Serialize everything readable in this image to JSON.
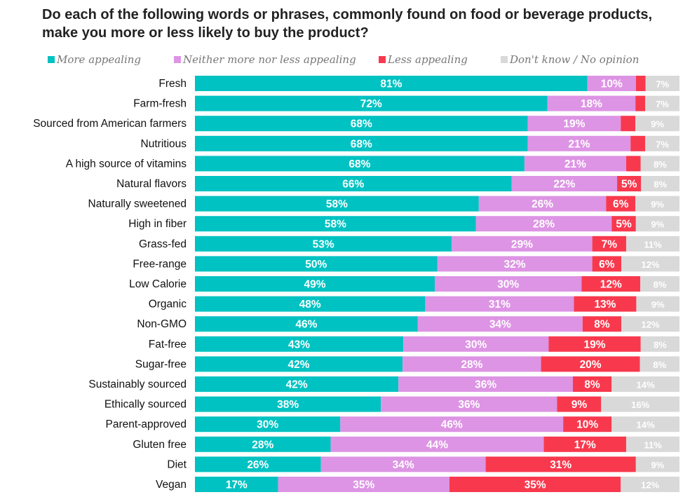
{
  "chart_data": {
    "type": "bar",
    "orientation": "horizontal",
    "stacked": true,
    "title": "Do each of the following words or phrases, commonly found on food or beverage products, make you more or less likely to buy the product?",
    "legend_position": "top",
    "categories": [
      "Fresh",
      "Farm-fresh",
      "Sourced from American farmers",
      "Nutritious",
      "A high source of vitamins",
      "Natural flavors",
      "Naturally sweetened",
      "High in fiber",
      "Grass-fed",
      "Free-range",
      "Low Calorie",
      "Organic",
      "Non-GMO",
      "Fat-free",
      "Sugar-free",
      "Sustainably sourced",
      "Ethically sourced",
      "Parent-approved",
      "Gluten free",
      "Diet",
      "Vegan"
    ],
    "series": [
      {
        "name": "More appealing",
        "color": "#00c2c2",
        "values": [
          81,
          72,
          68,
          68,
          68,
          66,
          58,
          58,
          53,
          50,
          49,
          48,
          46,
          43,
          42,
          42,
          38,
          30,
          28,
          26,
          17
        ],
        "labels": [
          "81%",
          "72%",
          "68%",
          "68%",
          "68%",
          "66%",
          "58%",
          "58%",
          "53%",
          "50%",
          "49%",
          "48%",
          "46%",
          "43%",
          "42%",
          "42%",
          "38%",
          "30%",
          "28%",
          "26%",
          "17%"
        ]
      },
      {
        "name": "Neither more nor less appealing",
        "color": "#dd94e4",
        "values": [
          10,
          18,
          19,
          21,
          21,
          22,
          26,
          28,
          29,
          32,
          30,
          31,
          34,
          30,
          28,
          36,
          36,
          46,
          44,
          34,
          35
        ],
        "labels": [
          "10%",
          "18%",
          "19%",
          "21%",
          "21%",
          "22%",
          "26%",
          "28%",
          "29%",
          "32%",
          "30%",
          "31%",
          "34%",
          "30%",
          "28%",
          "36%",
          "36%",
          "46%",
          "44%",
          "34%",
          "35%"
        ]
      },
      {
        "name": "Less appealing",
        "color": "#f8394d",
        "values": [
          2,
          2,
          3,
          3,
          3,
          5,
          6,
          5,
          7,
          6,
          12,
          13,
          8,
          19,
          20,
          8,
          9,
          10,
          17,
          31,
          35
        ],
        "labels": [
          "",
          "",
          "",
          "",
          "",
          "5%",
          "6%",
          "5%",
          "7%",
          "6%",
          "12%",
          "13%",
          "8%",
          "19%",
          "20%",
          "8%",
          "9%",
          "10%",
          "17%",
          "31%",
          "35%"
        ]
      },
      {
        "name": "Don't know / No opinion",
        "color": "#d9d9d9",
        "values": [
          7,
          7,
          9,
          7,
          8,
          8,
          9,
          9,
          11,
          12,
          8,
          9,
          12,
          8,
          8,
          14,
          16,
          14,
          11,
          9,
          12
        ],
        "labels": [
          "7%",
          "7%",
          "9%",
          "7%",
          "8%",
          "8%",
          "9%",
          "9%",
          "11%",
          "12%",
          "8%",
          "9%",
          "12%",
          "8%",
          "8%",
          "14%",
          "16%",
          "14%",
          "11%",
          "9%",
          "12%"
        ]
      }
    ]
  }
}
